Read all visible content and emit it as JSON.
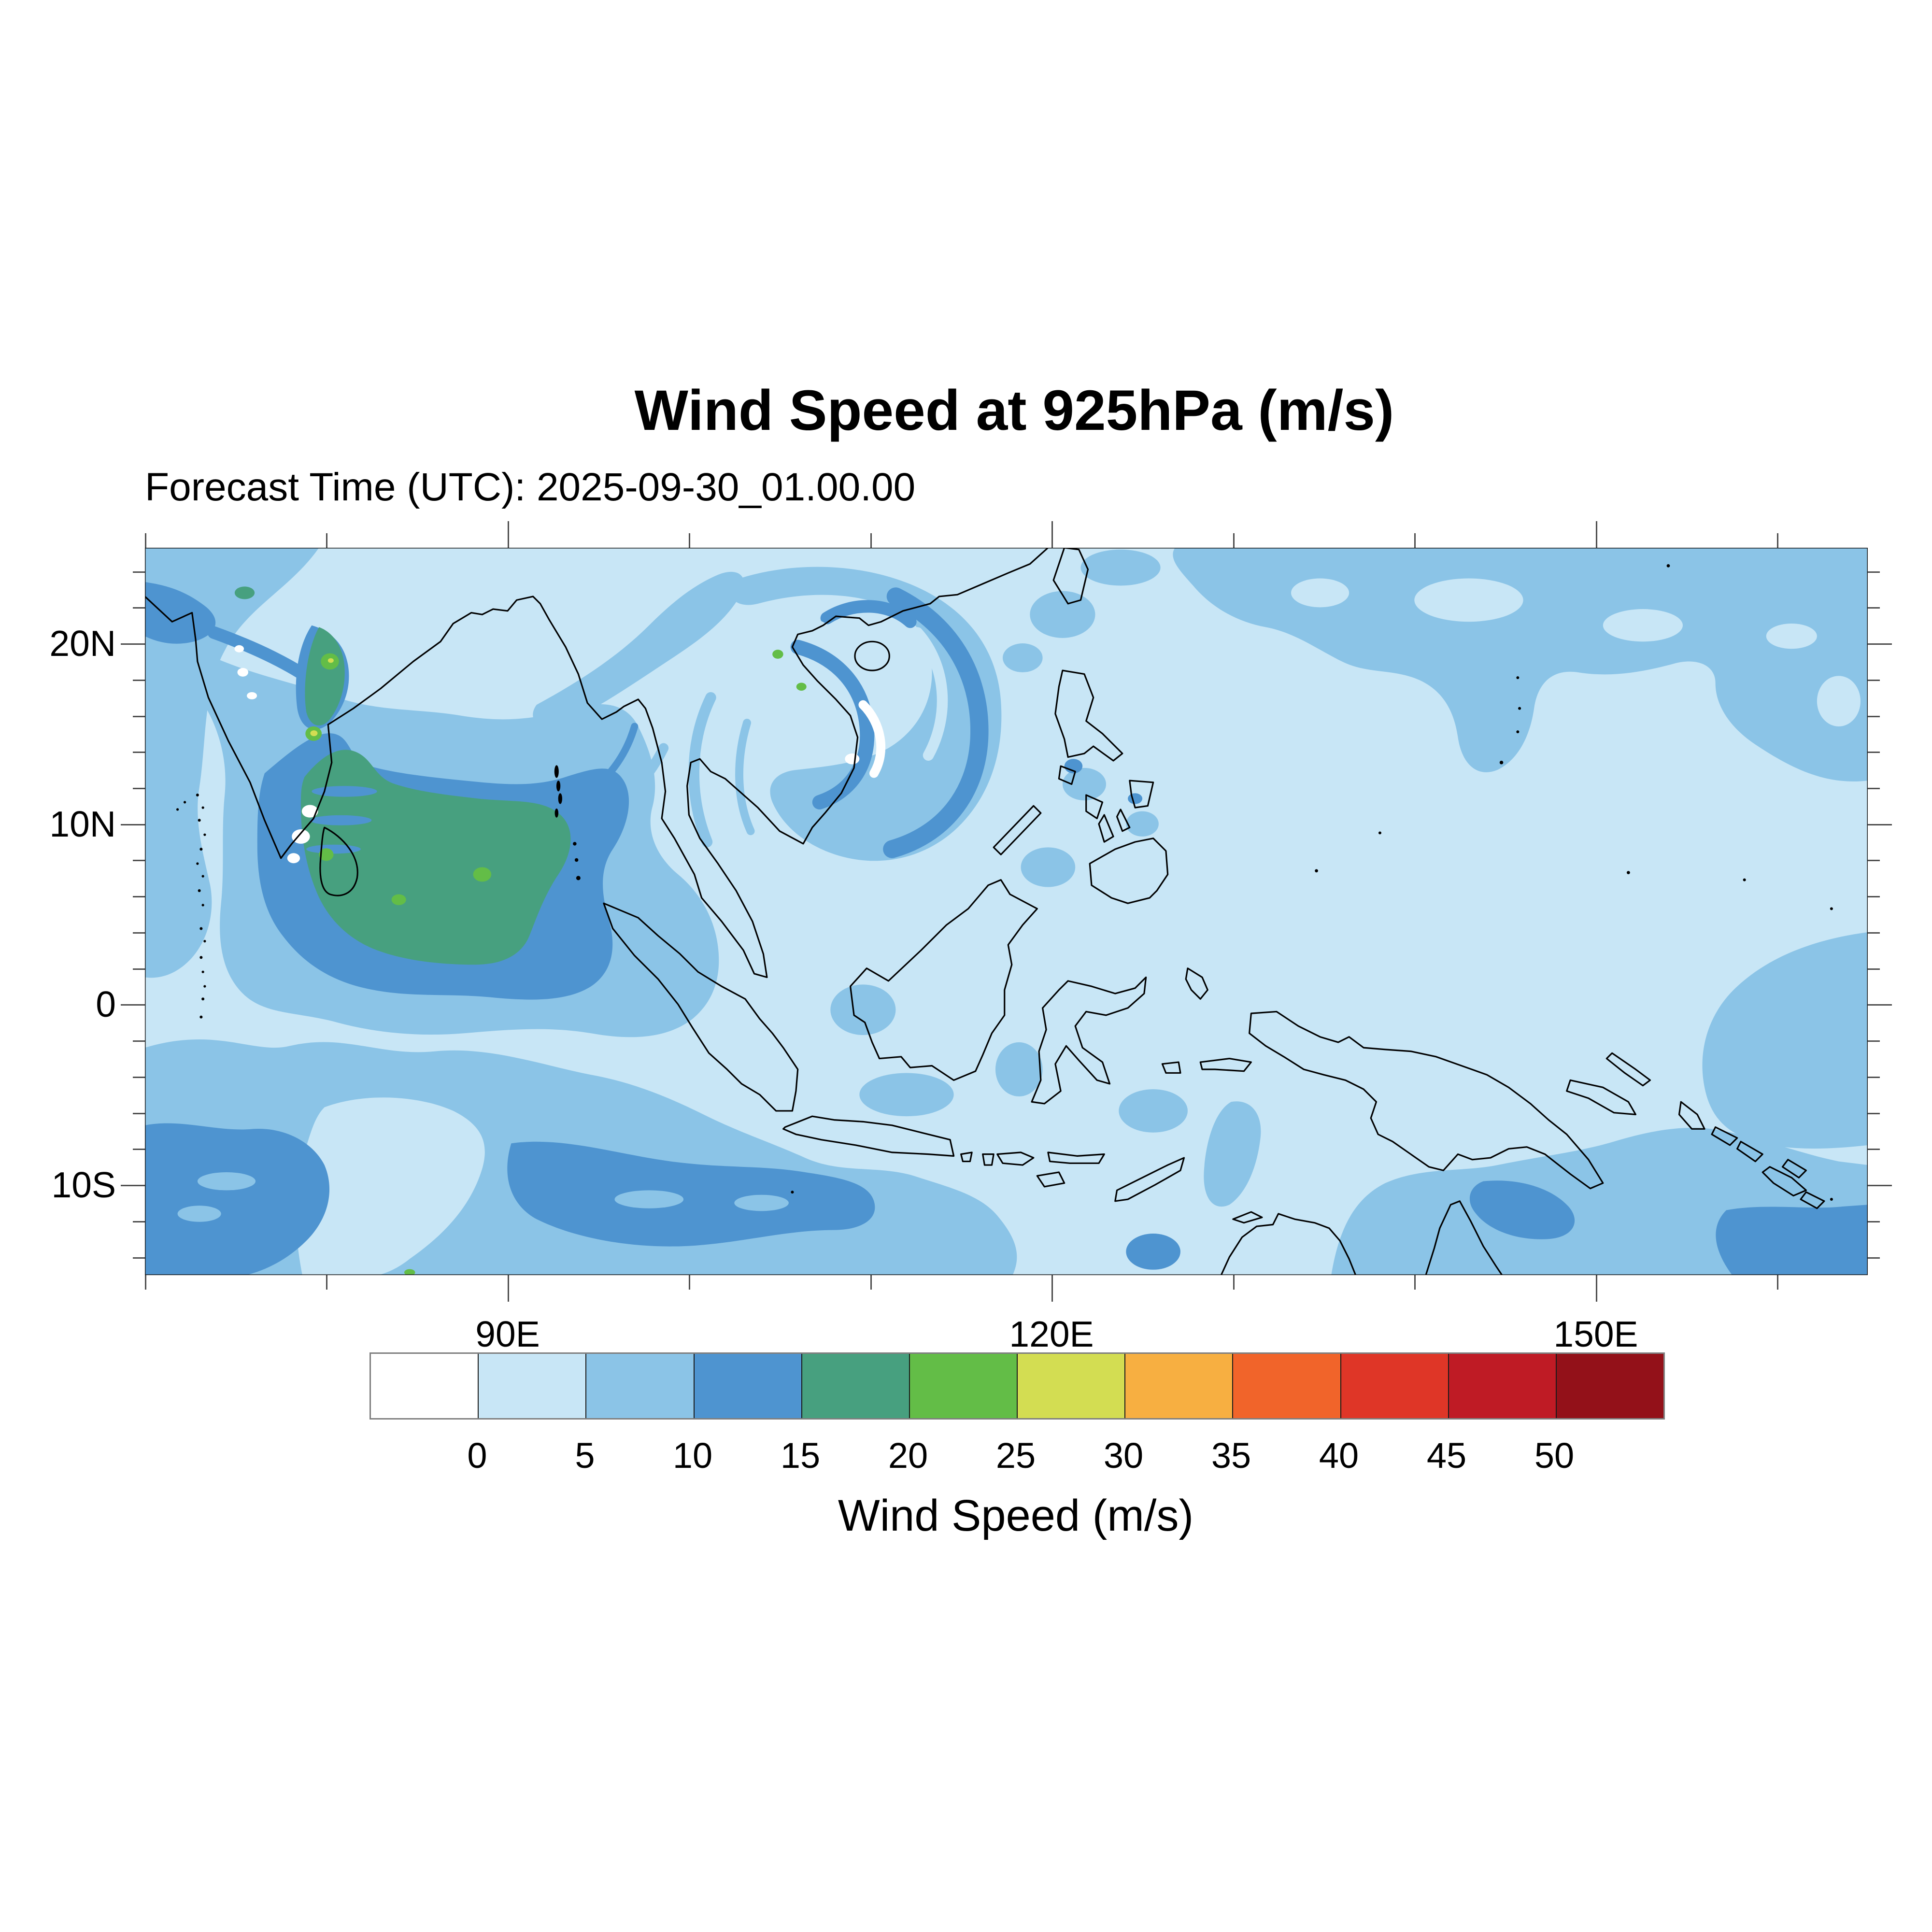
{
  "header": {
    "title": "Wind Speed at 925hPa (m/s)",
    "subtitle": "Forecast Time (UTC): 2025-09-30_01.00.00"
  },
  "chart_data": {
    "type": "heatmap",
    "title": "Wind Speed at 925hPa (m/s)",
    "subtitle": "Forecast Time (UTC): 2025-09-30_01.00.00",
    "forecast_time_utc": "2025-09-30_01.00.00",
    "variable": "Wind Speed",
    "pressure_level": "925hPa",
    "units": "m/s",
    "map_extent": {
      "lon_min_deg_e": 70,
      "lon_max_deg_e": 165,
      "lat_min_deg": -15,
      "lat_max_deg": 25
    },
    "x_axis": {
      "ticks": [
        {
          "label": "90E",
          "deg": 90
        },
        {
          "label": "120E",
          "deg": 120
        },
        {
          "label": "150E",
          "deg": 150
        }
      ],
      "unlabeled_tick_interval_deg": 10
    },
    "y_axis": {
      "ticks": [
        {
          "label": "20N",
          "deg": 20
        },
        {
          "label": "10N",
          "deg": 10
        },
        {
          "label": "0",
          "deg": 0
        },
        {
          "label": "10S",
          "deg": -10
        }
      ],
      "minor_tick_interval_deg": 2
    },
    "colorbar": {
      "label": "Wind Speed (m/s)",
      "tick_labels": [
        "0",
        "5",
        "10",
        "15",
        "20",
        "25",
        "30",
        "35",
        "40",
        "45",
        "50"
      ],
      "levels_m_s": [
        0,
        5,
        10,
        15,
        20,
        25,
        30,
        35,
        40,
        45,
        50
      ],
      "colors": [
        "#ffffff",
        "#c8e6f6",
        "#8bc4e7",
        "#4e94d0",
        "#47a07f",
        "#63bd47",
        "#d3dd52",
        "#f7af41",
        "#f1642a",
        "#df3627",
        "#bf1b25",
        "#931119"
      ]
    },
    "readings": [
      {
        "area": "South peninsular India and southwest Bay of Bengal",
        "wind_speed_m_s": "15-20 with embedded 20-25 patches and tiny 25-30 specks"
      },
      {
        "area": "Central and southern Bay of Bengal around Sri Lanka",
        "wind_speed_m_s": "10-15"
      },
      {
        "area": "Ring around Bay of Bengal, west Arabian Sea strip and northwest India",
        "wind_speed_m_s": "5-10"
      },
      {
        "area": "Cyclonic spiral banding over Vietnam, Gulf of Tonkin and west South China Sea",
        "wind_speed_m_s": "alternating 5-10 and 10-15 bands"
      },
      {
        "area": "Western Pacific north of about 18N",
        "wind_speed_m_s": "5-10"
      },
      {
        "area": "Thailand, Maritime Continent and equatorial west Pacific",
        "wind_speed_m_s": "0-5"
      },
      {
        "area": "Southern Indian Ocean south of about 3S",
        "wind_speed_m_s": "5-10 with 10-15 cores near 10S"
      },
      {
        "area": "Coral and Solomon Seas, far southeast corner",
        "wind_speed_m_s": "5-10 with 10-15 patches"
      },
      {
        "area": "Small calm spots near southeast India coast and central Vietnam coast",
        "wind_speed_m_s": "near 0"
      }
    ]
  },
  "colors": {
    "page_background": "#ffffff",
    "coastline": "#000000",
    "map_frame": "#1a1a1a",
    "tick": "#4d4d4d",
    "text": "#000000",
    "colorbar_border": "#808080"
  }
}
